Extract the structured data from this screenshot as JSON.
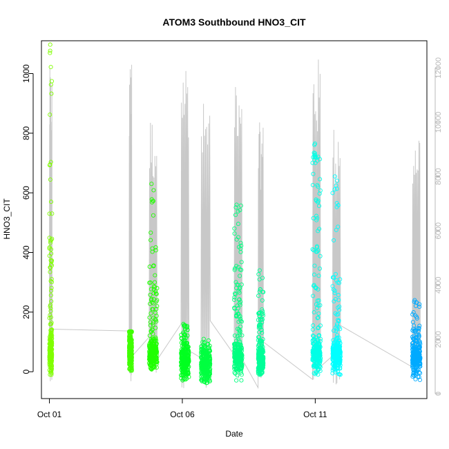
{
  "chart_data": {
    "type": "scatter",
    "title": "ATOM3 Southbound HNO3_CIT",
    "xlabel": "Date",
    "ylabel": "HNO3_CIT",
    "x_ticks": [
      "Oct 01",
      "Oct 06",
      "Oct 11"
    ],
    "x_tick_days": [
      0,
      5,
      10
    ],
    "x_range_days": [
      -0.3,
      14.2
    ],
    "y_range": [
      -90,
      1110
    ],
    "y_ticks": [
      0,
      200,
      400,
      600,
      800,
      1000
    ],
    "y2_range": [
      -180,
      13000
    ],
    "y2_ticks": [
      0,
      2000,
      4000,
      6000,
      8000,
      10000,
      12000
    ],
    "y2_label": "",
    "y2_color": "#b8b8b8",
    "altitude_line_color": "#c8c8c8",
    "grid": false,
    "legend": "none",
    "flights": [
      {
        "start_day": 0.0,
        "end_day": 0.1,
        "color": "#80ff00",
        "median": 60,
        "low": -10,
        "high": 450,
        "peak": 1097,
        "alt_max": 12000
      },
      {
        "start_day": 3.0,
        "end_day": 3.1,
        "color": "#40ff00",
        "median": 60,
        "low": 0,
        "high": 140,
        "peak": 135,
        "alt_max": 12200
      },
      {
        "start_day": 3.75,
        "end_day": 4.05,
        "color": "#20ff00",
        "median": 60,
        "low": 0,
        "high": 300,
        "peak": 630,
        "alt_max": 10300
      },
      {
        "start_day": 4.95,
        "end_day": 5.25,
        "color": "#00ff20",
        "median": 40,
        "low": -30,
        "high": 120,
        "peak": 160,
        "alt_max": 12500
      },
      {
        "start_day": 5.7,
        "end_day": 6.05,
        "color": "#00ff40",
        "median": 30,
        "low": -40,
        "high": 80,
        "peak": 110,
        "alt_max": 10800
      },
      {
        "start_day": 6.95,
        "end_day": 7.25,
        "color": "#00ff80",
        "median": 50,
        "low": -30,
        "high": 350,
        "peak": 560,
        "alt_max": 12300
      },
      {
        "start_day": 7.85,
        "end_day": 8.05,
        "color": "#00ff99",
        "median": 40,
        "low": -10,
        "high": 200,
        "peak": 340,
        "alt_max": 10000
      },
      {
        "start_day": 9.9,
        "end_day": 10.2,
        "color": "#00ffe6",
        "median": 60,
        "low": -10,
        "high": 700,
        "peak": 765,
        "alt_max": 12400
      },
      {
        "start_day": 10.65,
        "end_day": 10.95,
        "color": "#00ffff",
        "median": 60,
        "low": -10,
        "high": 330,
        "peak": 655,
        "alt_max": 10000
      },
      {
        "start_day": 13.65,
        "end_day": 13.95,
        "color": "#00aaff",
        "median": 50,
        "low": -30,
        "high": 150,
        "peak": 240,
        "alt_max": 10000
      }
    ]
  }
}
